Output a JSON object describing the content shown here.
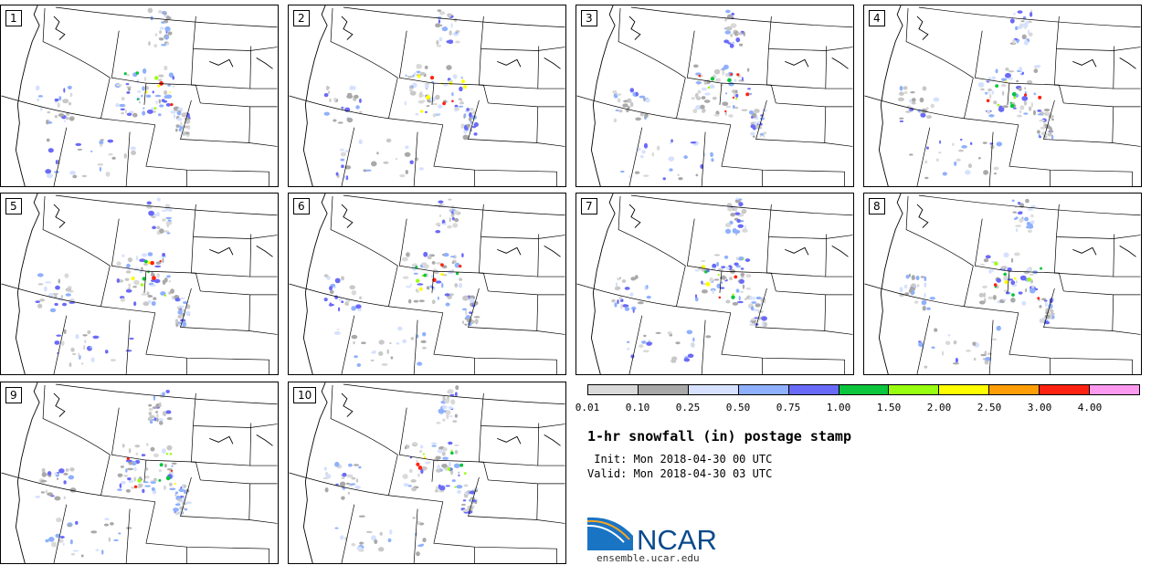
{
  "panels": [
    {
      "label": "1"
    },
    {
      "label": "2"
    },
    {
      "label": "3"
    },
    {
      "label": "4"
    },
    {
      "label": "5"
    },
    {
      "label": "6"
    },
    {
      "label": "7"
    },
    {
      "label": "8"
    },
    {
      "label": "9"
    },
    {
      "label": "10"
    }
  ],
  "colorbar": {
    "colors": [
      "#d9d9d9",
      "#a9a9a9",
      "#d6e1ff",
      "#8fb0fc",
      "#6a6af8",
      "#0bc53c",
      "#99ff11",
      "#ffff00",
      "#ff9e07",
      "#ff2210",
      "#fb99ee"
    ],
    "labels": [
      "0.01",
      "0.10",
      "0.25",
      "0.50",
      "0.75",
      "1.00",
      "1.50",
      "2.00",
      "2.50",
      "3.00",
      "4.00"
    ]
  },
  "title": "1-hr snowfall (in) postage stamp",
  "init_text": " Init: Mon 2018-04-30 00 UTC",
  "valid_text": "Valid: Mon 2018-04-30 03 UTC",
  "logo": {
    "text": "NCAR",
    "url": "ensemble.ucar.edu",
    "color": "#0a4a8c"
  }
}
